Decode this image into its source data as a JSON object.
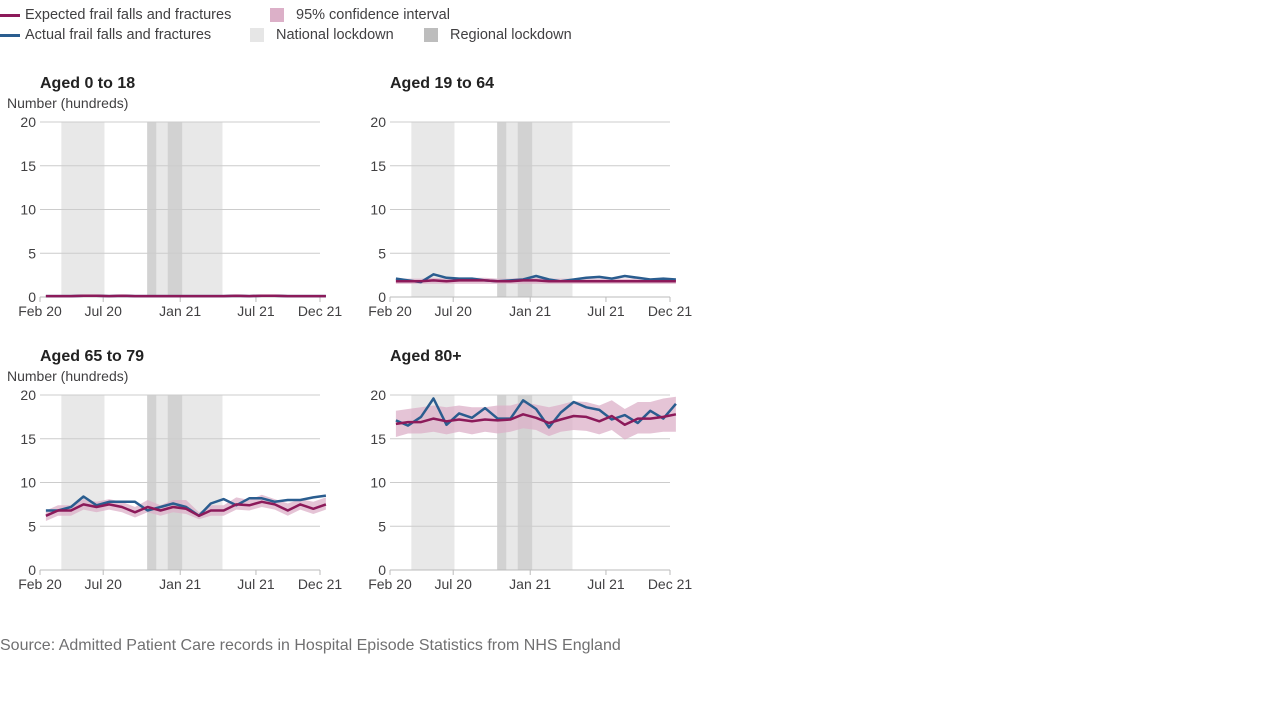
{
  "legend": {
    "expected": "Expected frail falls and fractures",
    "ci": "95% confidence interval",
    "actual": "Actual frail falls and fractures",
    "national": "National lockdown",
    "regional": "Regional lockdown"
  },
  "colors": {
    "expected": "#8c1a5a",
    "actual": "#2a5d8f",
    "ci": "#dcb0c8",
    "national": "#e8e8e8",
    "regional": "#d2d2d2",
    "grid": "#cccccc",
    "axis": "#bbbbbb"
  },
  "source": "Source: Admitted Patient Care records in Hospital Episode Statistics from NHS England",
  "chart_data": [
    {
      "type": "line",
      "title": "Aged 0 to 18",
      "ylabel": "Number (hundreds)",
      "ylim": [
        0,
        20
      ],
      "yticks": [
        0,
        5,
        10,
        15,
        20
      ],
      "xlim": [
        "2020-02",
        "2021-12"
      ],
      "xticks": [
        {
          "label": "Feb 20",
          "x": "2020-02"
        },
        {
          "label": "Jul 20",
          "x": "2020-07"
        },
        {
          "label": "Jan 21",
          "x": "2021-01"
        },
        {
          "label": "Jul 21",
          "x": "2021-07"
        },
        {
          "label": "Dec 21",
          "x": "2021-12"
        }
      ],
      "grid": true,
      "national_lockdowns": [
        [
          "2020-03-23",
          "2020-07-04"
        ],
        [
          "2020-11-05",
          "2020-12-02"
        ],
        [
          "2021-01-06",
          "2021-04-12"
        ]
      ],
      "regional_lockdowns": [
        [
          "2020-10-14",
          "2020-11-05"
        ],
        [
          "2020-12-02",
          "2021-01-06"
        ]
      ],
      "x": [
        "2020-02-15",
        "2020-03-15",
        "2020-04-15",
        "2020-05-15",
        "2020-06-15",
        "2020-07-15",
        "2020-08-15",
        "2020-09-15",
        "2020-10-15",
        "2020-11-15",
        "2020-12-15",
        "2021-01-15",
        "2021-02-15",
        "2021-03-15",
        "2021-04-15",
        "2021-05-15",
        "2021-06-15",
        "2021-07-15",
        "2021-08-15",
        "2021-09-15",
        "2021-10-15",
        "2021-11-15",
        "2021-12-15"
      ],
      "expected": [
        0.1,
        0.1,
        0.1,
        0.15,
        0.15,
        0.1,
        0.15,
        0.1,
        0.1,
        0.1,
        0.1,
        0.1,
        0.1,
        0.1,
        0.1,
        0.15,
        0.1,
        0.15,
        0.15,
        0.1,
        0.1,
        0.1,
        0.1
      ],
      "ci_lower": [
        0.05,
        0.05,
        0.05,
        0.05,
        0.05,
        0.05,
        0.05,
        0.05,
        0.05,
        0.05,
        0.05,
        0.05,
        0.05,
        0.05,
        0.05,
        0.05,
        0.05,
        0.05,
        0.05,
        0.05,
        0.05,
        0.05,
        0.05
      ],
      "ci_upper": [
        0.2,
        0.2,
        0.2,
        0.25,
        0.25,
        0.2,
        0.25,
        0.2,
        0.2,
        0.2,
        0.2,
        0.2,
        0.2,
        0.2,
        0.2,
        0.25,
        0.2,
        0.25,
        0.25,
        0.2,
        0.2,
        0.2,
        0.2
      ],
      "actual": [
        0.1,
        0.1,
        0.1,
        0.15,
        0.15,
        0.1,
        0.15,
        0.1,
        0.1,
        0.1,
        0.1,
        0.1,
        0.1,
        0.1,
        0.1,
        0.15,
        0.1,
        0.15,
        0.15,
        0.1,
        0.1,
        0.1,
        0.1
      ]
    },
    {
      "type": "line",
      "title": "Aged 19 to 64",
      "ylabel": "",
      "ylim": [
        0,
        20
      ],
      "yticks": [
        0,
        5,
        10,
        15,
        20
      ],
      "xlim": [
        "2020-02",
        "2021-12"
      ],
      "xticks": [
        {
          "label": "Feb 20",
          "x": "2020-02"
        },
        {
          "label": "Jul 20",
          "x": "2020-07"
        },
        {
          "label": "Jan 21",
          "x": "2021-01"
        },
        {
          "label": "Jul 21",
          "x": "2021-07"
        },
        {
          "label": "Dec 21",
          "x": "2021-12"
        }
      ],
      "grid": true,
      "national_lockdowns": [
        [
          "2020-03-23",
          "2020-07-04"
        ],
        [
          "2020-11-05",
          "2020-12-02"
        ],
        [
          "2021-01-06",
          "2021-04-12"
        ]
      ],
      "regional_lockdowns": [
        [
          "2020-10-14",
          "2020-11-05"
        ],
        [
          "2020-12-02",
          "2021-01-06"
        ]
      ],
      "x": [
        "2020-02-15",
        "2020-03-15",
        "2020-04-15",
        "2020-05-15",
        "2020-06-15",
        "2020-07-15",
        "2020-08-15",
        "2020-09-15",
        "2020-10-15",
        "2020-11-15",
        "2020-12-15",
        "2021-01-15",
        "2021-02-15",
        "2021-03-15",
        "2021-04-15",
        "2021-05-15",
        "2021-06-15",
        "2021-07-15",
        "2021-08-15",
        "2021-09-15",
        "2021-10-15",
        "2021-11-15",
        "2021-12-15"
      ],
      "expected": [
        1.8,
        1.8,
        1.8,
        1.9,
        1.8,
        1.9,
        1.9,
        1.9,
        1.8,
        1.8,
        1.9,
        1.9,
        1.8,
        1.8,
        1.8,
        1.8,
        1.8,
        1.8,
        1.8,
        1.8,
        1.8,
        1.8,
        1.8
      ],
      "ci_lower": [
        1.5,
        1.5,
        1.5,
        1.5,
        1.5,
        1.5,
        1.5,
        1.5,
        1.5,
        1.5,
        1.5,
        1.5,
        1.5,
        1.5,
        1.5,
        1.5,
        1.5,
        1.5,
        1.5,
        1.5,
        1.5,
        1.5,
        1.5
      ],
      "ci_upper": [
        2.1,
        2.1,
        2.1,
        2.2,
        2.1,
        2.2,
        2.2,
        2.2,
        2.1,
        2.1,
        2.2,
        2.2,
        2.1,
        2.1,
        2.1,
        2.1,
        2.1,
        2.1,
        2.1,
        2.1,
        2.1,
        2.1,
        2.1
      ],
      "actual": [
        2.1,
        1.9,
        1.7,
        2.6,
        2.2,
        2.1,
        2.1,
        1.9,
        1.8,
        1.9,
        2.0,
        2.4,
        2.0,
        1.8,
        2.0,
        2.2,
        2.3,
        2.1,
        2.4,
        2.2,
        2.0,
        2.1,
        2.0
      ]
    },
    {
      "type": "line",
      "title": "Aged 65 to 79",
      "ylabel": "Number (hundreds)",
      "ylim": [
        0,
        20
      ],
      "yticks": [
        0,
        5,
        10,
        15,
        20
      ],
      "xlim": [
        "2020-02",
        "2021-12"
      ],
      "xticks": [
        {
          "label": "Feb 20",
          "x": "2020-02"
        },
        {
          "label": "Jul 20",
          "x": "2020-07"
        },
        {
          "label": "Jan 21",
          "x": "2021-01"
        },
        {
          "label": "Jul 21",
          "x": "2021-07"
        },
        {
          "label": "Dec 21",
          "x": "2021-12"
        }
      ],
      "grid": true,
      "national_lockdowns": [
        [
          "2020-03-23",
          "2020-07-04"
        ],
        [
          "2020-11-05",
          "2020-12-02"
        ],
        [
          "2021-01-06",
          "2021-04-12"
        ]
      ],
      "regional_lockdowns": [
        [
          "2020-10-14",
          "2020-11-05"
        ],
        [
          "2020-12-02",
          "2021-01-06"
        ]
      ],
      "x": [
        "2020-02-15",
        "2020-03-15",
        "2020-04-15",
        "2020-05-15",
        "2020-06-15",
        "2020-07-15",
        "2020-08-15",
        "2020-09-15",
        "2020-10-15",
        "2020-11-15",
        "2020-12-15",
        "2021-01-15",
        "2021-02-15",
        "2021-03-15",
        "2021-04-15",
        "2021-05-15",
        "2021-06-15",
        "2021-07-15",
        "2021-08-15",
        "2021-09-15",
        "2021-10-15",
        "2021-11-15",
        "2021-12-15"
      ],
      "expected": [
        6.2,
        6.8,
        6.8,
        7.5,
        7.2,
        7.5,
        7.2,
        6.6,
        7.2,
        6.8,
        7.2,
        7.0,
        6.2,
        6.8,
        6.8,
        7.5,
        7.4,
        7.8,
        7.5,
        6.8,
        7.5,
        7.0,
        7.5
      ],
      "ci_lower": [
        5.6,
        6.2,
        6.2,
        6.9,
        6.6,
        6.9,
        6.6,
        6.0,
        6.6,
        6.2,
        6.6,
        6.4,
        5.8,
        6.2,
        6.2,
        6.9,
        6.8,
        7.2,
        6.9,
        6.2,
        6.9,
        6.4,
        6.9
      ],
      "ci_upper": [
        6.8,
        7.4,
        7.4,
        8.1,
        7.8,
        8.1,
        7.8,
        7.2,
        8.0,
        7.4,
        8.0,
        8.0,
        6.6,
        7.4,
        7.4,
        8.3,
        8.0,
        8.6,
        8.1,
        7.6,
        8.1,
        7.8,
        8.3
      ],
      "actual": [
        6.8,
        6.8,
        7.2,
        8.4,
        7.4,
        7.8,
        7.8,
        7.8,
        6.8,
        7.2,
        7.6,
        7.2,
        6.2,
        7.6,
        8.1,
        7.4,
        8.2,
        8.2,
        7.8,
        8.0,
        8.0,
        8.3,
        8.5
      ]
    },
    {
      "type": "line",
      "title": "Aged 80+",
      "ylabel": "",
      "ylim": [
        0,
        20
      ],
      "yticks": [
        0,
        5,
        10,
        15,
        20
      ],
      "xlim": [
        "2020-02",
        "2021-12"
      ],
      "xticks": [
        {
          "label": "Feb 20",
          "x": "2020-02"
        },
        {
          "label": "Jul 20",
          "x": "2020-07"
        },
        {
          "label": "Jan 21",
          "x": "2021-01"
        },
        {
          "label": "Jul 21",
          "x": "2021-07"
        },
        {
          "label": "Dec 21",
          "x": "2021-12"
        }
      ],
      "grid": true,
      "national_lockdowns": [
        [
          "2020-03-23",
          "2020-07-04"
        ],
        [
          "2020-11-05",
          "2020-12-02"
        ],
        [
          "2021-01-06",
          "2021-04-12"
        ]
      ],
      "regional_lockdowns": [
        [
          "2020-10-14",
          "2020-11-05"
        ],
        [
          "2020-12-02",
          "2021-01-06"
        ]
      ],
      "x": [
        "2020-02-15",
        "2020-03-15",
        "2020-04-15",
        "2020-05-15",
        "2020-06-15",
        "2020-07-15",
        "2020-08-15",
        "2020-09-15",
        "2020-10-15",
        "2020-11-15",
        "2020-12-15",
        "2021-01-15",
        "2021-02-15",
        "2021-03-15",
        "2021-04-15",
        "2021-05-15",
        "2021-06-15",
        "2021-07-15",
        "2021-08-15",
        "2021-09-15",
        "2021-10-15",
        "2021-11-15",
        "2021-12-15"
      ],
      "expected": [
        16.7,
        16.9,
        16.9,
        17.3,
        17.0,
        17.2,
        17.0,
        17.2,
        17.1,
        17.2,
        17.8,
        17.4,
        16.8,
        17.2,
        17.6,
        17.5,
        17.0,
        17.6,
        16.6,
        17.3,
        17.3,
        17.5,
        17.8
      ],
      "ci_lower": [
        15.2,
        15.6,
        15.6,
        15.8,
        15.5,
        15.8,
        15.5,
        15.8,
        15.6,
        15.8,
        16.2,
        16.0,
        15.3,
        15.8,
        16.0,
        15.9,
        15.5,
        16.0,
        14.9,
        15.6,
        15.6,
        15.8,
        15.8
      ],
      "ci_upper": [
        18.2,
        18.4,
        18.6,
        18.8,
        18.6,
        18.8,
        18.6,
        18.6,
        18.8,
        18.8,
        19.2,
        18.9,
        18.6,
        18.9,
        19.3,
        19.2,
        18.8,
        19.4,
        18.4,
        19.2,
        19.2,
        19.6,
        19.8
      ],
      "actual": [
        17.1,
        16.5,
        17.5,
        19.6,
        16.6,
        17.9,
        17.4,
        18.5,
        17.3,
        17.3,
        19.4,
        18.4,
        16.3,
        18.0,
        19.2,
        18.6,
        18.3,
        17.2,
        17.7,
        16.8,
        18.2,
        17.3,
        19.0
      ]
    }
  ]
}
